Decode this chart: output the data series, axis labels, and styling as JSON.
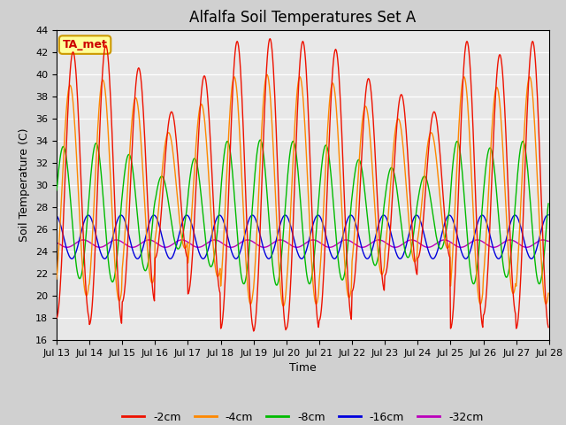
{
  "title": "Alfalfa Soil Temperatures Set A",
  "xlabel": "Time",
  "ylabel": "Soil Temperature (C)",
  "ylim": [
    16,
    44
  ],
  "bg_color": "#e8e8e8",
  "fig_color": "#d0d0d0",
  "series_labels": [
    "-2cm",
    "-4cm",
    "-8cm",
    "-16cm",
    "-32cm"
  ],
  "series_colors": [
    "#ee1100",
    "#ff8800",
    "#00bb00",
    "#0000dd",
    "#bb00bb"
  ],
  "ta_met_label": "TA_met",
  "ta_met_color": "#cc0000",
  "ta_met_bg": "#ffff99",
  "ta_met_border": "#cc9900",
  "xtick_labels": [
    "Jul 13",
    "Jul 14",
    "Jul 15",
    "Jul 16",
    "Jul 17",
    "Jul 18",
    "Jul 19",
    "Jul 20",
    "Jul 21",
    "Jul 22",
    "Jul 23",
    "Jul 24",
    "Jul 25",
    "Jul 26",
    "Jul 27",
    "Jul 28"
  ],
  "n_days": 15,
  "ppd": 48,
  "title_fontsize": 12,
  "label_fontsize": 9,
  "tick_fontsize": 8,
  "legend_fontsize": 9,
  "mean2": 30.0,
  "amp2": 12.0,
  "mean4": 29.5,
  "amp4": 9.5,
  "mean8": 27.5,
  "amp8": 6.0,
  "mean16": 25.3,
  "amp16": 2.0,
  "mean32": 24.7,
  "amp32": 0.35,
  "phase2": -1.57,
  "phase4": -1.0,
  "phase8": 0.3,
  "phase16": 1.8,
  "phase32": 2.8
}
